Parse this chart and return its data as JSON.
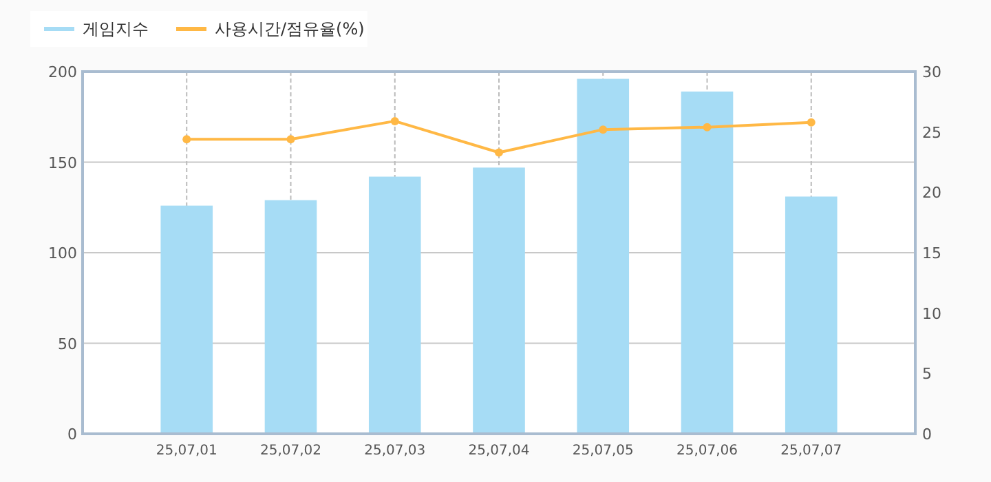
{
  "chart_data": {
    "type": "bar",
    "categories": [
      "25,07,01",
      "25,07,02",
      "25,07,03",
      "25,07,04",
      "25,07,05",
      "25,07,06",
      "25,07,07"
    ],
    "series": [
      {
        "name": "게임지수",
        "color": "#a6dcf5",
        "values": [
          126,
          129,
          142,
          147,
          196,
          189,
          131
        ]
      },
      {
        "name": "사용시간/점유율(%)",
        "type": "line",
        "axis": "y2",
        "color": "#ffb845",
        "marker": "circle",
        "values": [
          24.4,
          24.4,
          25.9,
          23.3,
          25.2,
          25.4,
          25.8
        ]
      }
    ],
    "ylim": [
      0,
      200
    ],
    "yticks": [
      0,
      50,
      100,
      150,
      200
    ],
    "y2lim": [
      0,
      30
    ],
    "y2ticks": [
      0,
      5,
      10,
      15,
      20,
      25,
      30
    ],
    "grid": true,
    "legend": "top left"
  }
}
